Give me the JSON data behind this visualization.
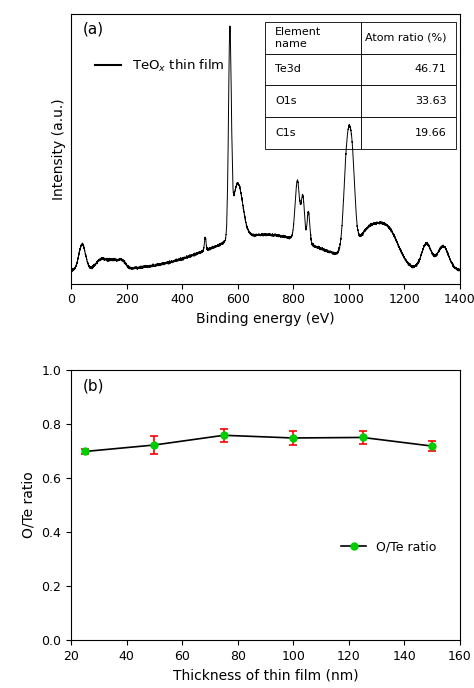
{
  "panel_a": {
    "label": "(a)",
    "xlabel": "Binding energy (eV)",
    "ylabel": "Intensity (a.u.)",
    "xlim": [
      0,
      1400
    ],
    "legend_label": "TeO$_x$ thin film",
    "table_headers": [
      "Element\nname",
      "Atom ratio (%)"
    ],
    "table_rows": [
      [
        "Te3d",
        "46.71"
      ],
      [
        "O1s",
        "33.63"
      ],
      [
        "C1s",
        "19.66"
      ]
    ]
  },
  "panel_b": {
    "label": "(b)",
    "xlabel": "Thickness of thin film (nm)",
    "ylabel": "O/Te ratio",
    "xlim": [
      20,
      160
    ],
    "ylim": [
      0.0,
      1.0
    ],
    "xticks": [
      20,
      40,
      60,
      80,
      100,
      120,
      140,
      160
    ],
    "yticks": [
      0.0,
      0.2,
      0.4,
      0.6,
      0.8,
      1.0
    ],
    "x": [
      25,
      50,
      75,
      100,
      125,
      150
    ],
    "y": [
      0.698,
      0.722,
      0.758,
      0.748,
      0.75,
      0.718
    ],
    "yerr": [
      0.01,
      0.035,
      0.025,
      0.025,
      0.025,
      0.02
    ],
    "legend_label": "O/Te ratio",
    "line_color": "#000000",
    "marker_color": "#00cc00",
    "err_color": "#ff0000"
  }
}
